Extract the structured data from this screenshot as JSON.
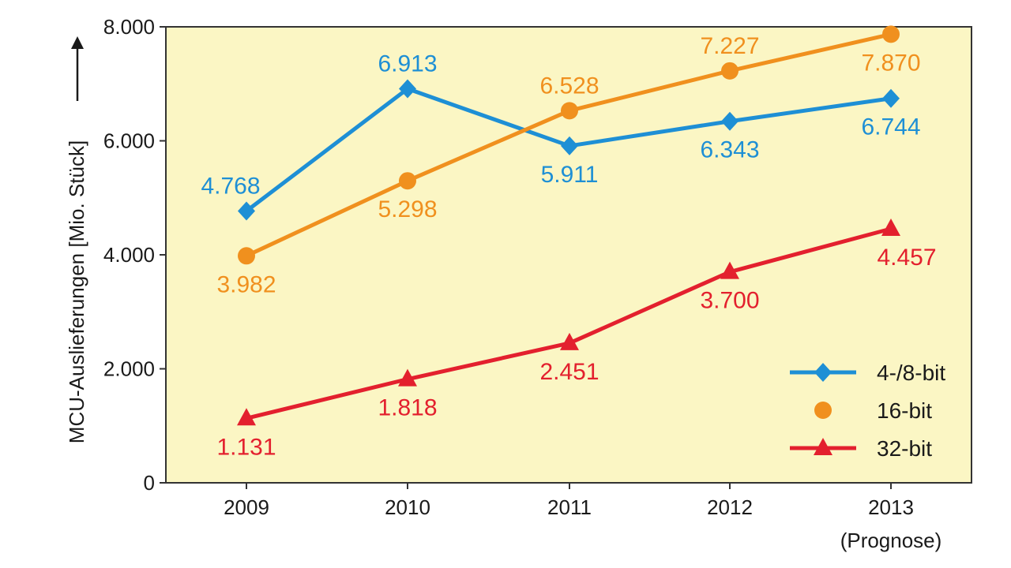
{
  "chart_data": {
    "type": "line",
    "ylabel": "MCU-Auslieferungen [Mio. Stück]",
    "ylim": [
      0,
      8000
    ],
    "yticks": [
      "0",
      "2.000",
      "4.000",
      "6.000",
      "8.000"
    ],
    "ytick_values": [
      0,
      2000,
      4000,
      6000,
      8000
    ],
    "x": [
      "2009",
      "2010",
      "2011",
      "2012",
      "2013"
    ],
    "x_sublabels": [
      "",
      "",
      "",
      "",
      "(Prognose)"
    ],
    "grid": false,
    "legend_position": "bottom-right",
    "series": [
      {
        "name": "4-/8-bit",
        "marker": "diamond",
        "color": "#1e8fd5",
        "values": [
          4768,
          6913,
          5911,
          6343,
          6744
        ],
        "labels": [
          "4.768",
          "6.913",
          "5.911",
          "6.343",
          "6.744"
        ]
      },
      {
        "name": "16-bit",
        "marker": "circle",
        "color": "#f0901e",
        "values": [
          3982,
          5298,
          6528,
          7227,
          7870
        ],
        "labels": [
          "3.982",
          "5.298",
          "6.528",
          "7.227",
          "7.870"
        ]
      },
      {
        "name": "32-bit",
        "marker": "triangle",
        "color": "#e3202e",
        "values": [
          1131,
          1818,
          2451,
          3700,
          4457
        ],
        "labels": [
          "1.131",
          "1.818",
          "2.451",
          "3.700",
          "4.457"
        ]
      }
    ],
    "colors": {
      "plot_background": "#fbf6c4",
      "axis": "#333333"
    }
  }
}
